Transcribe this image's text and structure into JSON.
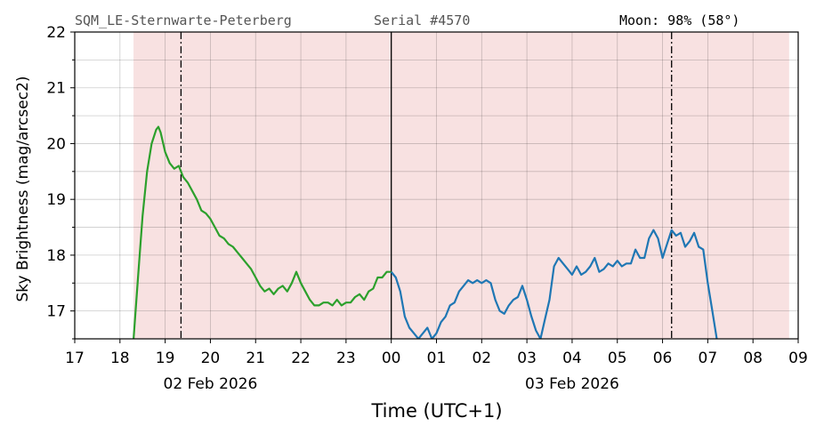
{
  "header": {
    "site": "SQM_LE-Sternwarte-Peterberg",
    "serial": "Serial #4570",
    "moon": "Moon: 98% (58°)"
  },
  "chart_data": {
    "type": "line",
    "title": "",
    "xlabel": "Time (UTC+1)",
    "ylabel": "Sky Brightness (mag/arcsec2)",
    "xlim": [
      17,
      33
    ],
    "ylim": [
      16.5,
      22
    ],
    "x_ticks": [
      "17",
      "18",
      "19",
      "20",
      "21",
      "22",
      "23",
      "00",
      "01",
      "02",
      "03",
      "04",
      "05",
      "06",
      "07",
      "08",
      "09"
    ],
    "y_ticks": [
      "17",
      "18",
      "19",
      "20",
      "21",
      "22"
    ],
    "date_labels": [
      {
        "text": "02 Feb 2026",
        "x": 20
      },
      {
        "text": "03 Feb 2026",
        "x": 28
      }
    ],
    "grid": true,
    "night_shade": {
      "from": 18.3,
      "to": 32.8,
      "color": "#f8e1e1"
    },
    "midnight_line": 24,
    "dashdot_lines": [
      19.35,
      30.2
    ],
    "colors": {
      "evening": "#2ca02c",
      "morning": "#1f77b4"
    },
    "series": [
      {
        "color": "#2ca02c",
        "x": [
          18.3,
          18.4,
          18.5,
          18.6,
          18.7,
          18.8,
          18.85,
          18.9,
          19.0,
          19.1,
          19.2,
          19.3,
          19.4,
          19.5,
          19.6,
          19.7,
          19.8,
          19.9,
          20.0,
          20.1,
          20.2,
          20.3,
          20.4,
          20.5,
          20.6,
          20.7,
          20.8,
          20.9,
          21.0,
          21.1,
          21.2,
          21.3,
          21.4,
          21.5,
          21.6,
          21.7,
          21.8,
          21.9,
          22.0,
          22.1,
          22.2,
          22.3,
          22.4,
          22.5,
          22.6,
          22.7,
          22.8,
          22.9,
          23.0,
          23.1,
          23.2,
          23.3,
          23.4,
          23.5,
          23.6,
          23.7,
          23.8,
          23.9,
          24.0
        ],
        "y": [
          16.5,
          17.6,
          18.7,
          19.5,
          20.0,
          20.25,
          20.3,
          20.2,
          19.85,
          19.65,
          19.55,
          19.6,
          19.4,
          19.3,
          19.15,
          19.0,
          18.8,
          18.75,
          18.65,
          18.5,
          18.35,
          18.3,
          18.2,
          18.15,
          18.05,
          17.95,
          17.85,
          17.75,
          17.6,
          17.45,
          17.35,
          17.4,
          17.3,
          17.4,
          17.45,
          17.35,
          17.5,
          17.7,
          17.5,
          17.35,
          17.2,
          17.1,
          17.1,
          17.15,
          17.15,
          17.1,
          17.2,
          17.1,
          17.15,
          17.15,
          17.25,
          17.3,
          17.2,
          17.35,
          17.4,
          17.6,
          17.6,
          17.7,
          17.7
        ]
      },
      {
        "color": "#1f77b4",
        "x": [
          24.0,
          24.1,
          24.2,
          24.3,
          24.4,
          24.5,
          24.6,
          24.7,
          24.8,
          24.9,
          25.0,
          25.1,
          25.2,
          25.3,
          25.4,
          25.5,
          25.6,
          25.7,
          25.8,
          25.9,
          26.0,
          26.1,
          26.2,
          26.3,
          26.4,
          26.5,
          26.6,
          26.7,
          26.8,
          26.9,
          27.0,
          27.1,
          27.2,
          27.3,
          27.4,
          27.5,
          27.6,
          27.7,
          27.8,
          27.9,
          28.0,
          28.1,
          28.2,
          28.3,
          28.4,
          28.5,
          28.6,
          28.7,
          28.8,
          28.9,
          29.0,
          29.1,
          29.2,
          29.3,
          29.4,
          29.5,
          29.6,
          29.7,
          29.8,
          29.9,
          30.0,
          30.1,
          30.2,
          30.3,
          30.4,
          30.5,
          30.6,
          30.7,
          30.8,
          30.9,
          31.0,
          31.1,
          31.2
        ],
        "y": [
          17.7,
          17.6,
          17.35,
          16.9,
          16.7,
          16.6,
          16.5,
          16.6,
          16.7,
          16.5,
          16.6,
          16.8,
          16.9,
          17.1,
          17.15,
          17.35,
          17.45,
          17.55,
          17.5,
          17.55,
          17.5,
          17.55,
          17.5,
          17.2,
          17.0,
          16.95,
          17.1,
          17.2,
          17.25,
          17.45,
          17.2,
          16.9,
          16.65,
          16.5,
          16.85,
          17.2,
          17.8,
          17.95,
          17.85,
          17.75,
          17.65,
          17.8,
          17.65,
          17.7,
          17.8,
          17.95,
          17.7,
          17.75,
          17.85,
          17.8,
          17.9,
          17.8,
          17.85,
          17.85,
          18.1,
          17.95,
          17.95,
          18.3,
          18.45,
          18.3,
          17.95,
          18.2,
          18.45,
          18.35,
          18.4,
          18.15,
          18.25,
          18.4,
          18.15,
          18.1,
          17.5,
          17.0,
          16.5
        ]
      }
    ]
  }
}
